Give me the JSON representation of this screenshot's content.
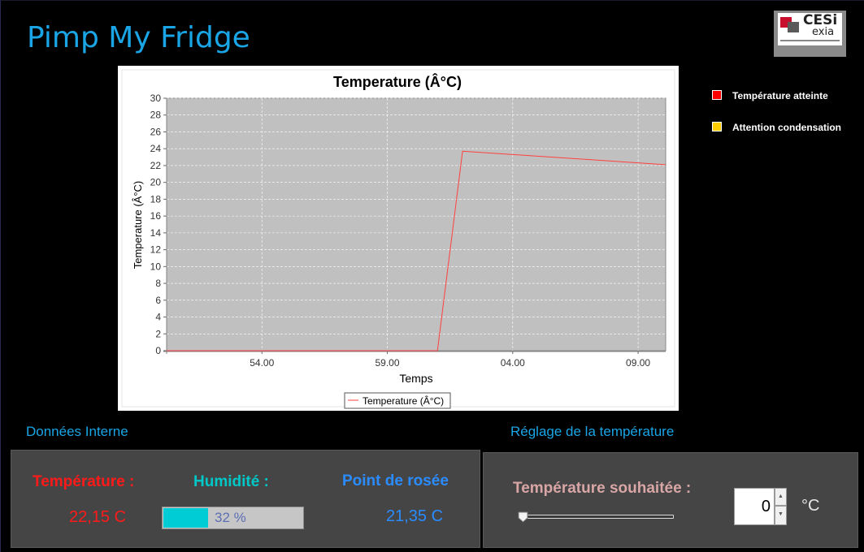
{
  "app": {
    "title": "Pimp My Fridge",
    "logo_text_1": "CESi",
    "logo_text_2": "exia"
  },
  "legend_side": [
    {
      "label": "Température atteinte",
      "color": "#ff0000"
    },
    {
      "label": "Attention condensation",
      "color": "#ffcc00"
    }
  ],
  "chart_data": {
    "type": "line",
    "title": "Temperature (Â°C)",
    "xlabel": "Temps",
    "ylabel": "Temperature (Â°C)",
    "ylim": [
      0,
      30
    ],
    "y_ticks": [
      0,
      2,
      4,
      6,
      8,
      10,
      12,
      14,
      16,
      18,
      20,
      22,
      24,
      26,
      28,
      30
    ],
    "x_ticks": [
      "54.00",
      "59.00",
      "04.00",
      "09.00"
    ],
    "x_tick_values": [
      54,
      59,
      64,
      69
    ],
    "xlim": [
      50.2,
      70.1
    ],
    "legend": "Temperature (Â°C)",
    "series": [
      {
        "name": "Temperature (Â°C)",
        "color": "#ff4040",
        "x": [
          50.2,
          61.0,
          62.0,
          70.1
        ],
        "values": [
          0,
          0,
          23.7,
          22.1
        ]
      }
    ]
  },
  "internal": {
    "section_label": "Données Interne",
    "temperature_label": "Température :",
    "temperature_value": "22,15 C",
    "humidity_label": "Humidité :",
    "humidity_value": "32 %",
    "humidity_percent": 32,
    "dew_label": "Point de rosée",
    "dew_value": "21,35 C"
  },
  "settings": {
    "section_label": "Réglage de la température",
    "desired_label": "Température souhaitée :",
    "desired_value": "0",
    "slider_value": 0,
    "unit": "°C"
  },
  "colors": {
    "accent": "#1aa5e6",
    "temperature": "#ff1a1a",
    "humidity": "#00c8c8",
    "dew": "#2a8cff",
    "desired": "#d9a6a6"
  }
}
